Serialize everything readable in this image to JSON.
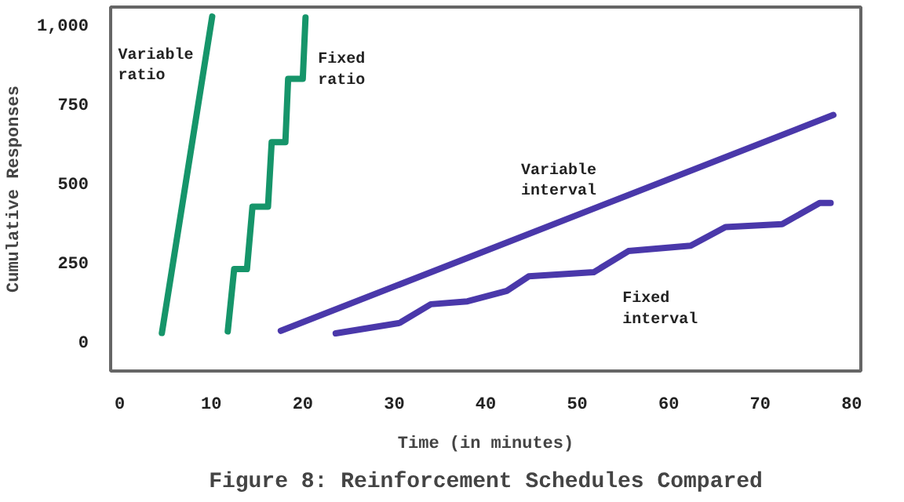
{
  "chart_data": {
    "type": "line",
    "title": "Figure 8: Reinforcement Schedules Compared",
    "xlabel": "Time (in minutes)",
    "ylabel": "Cumulative Responses",
    "xlim": [
      -1,
      81
    ],
    "ylim": [
      -95,
      1055
    ],
    "xticks": [
      0,
      10,
      20,
      30,
      40,
      50,
      60,
      70,
      80
    ],
    "yticks": [
      0,
      250,
      500,
      750,
      {
        "value": 1000,
        "label": "1,000"
      }
    ],
    "grid": false,
    "legend": false,
    "series": [
      {
        "name": "Variable ratio",
        "color": "#16956a",
        "x": [
          4.6,
          10.1
        ],
        "values": [
          25,
          1025
        ]
      },
      {
        "name": "Fixed ratio",
        "color": "#16956a",
        "x": [
          11.8,
          12.5,
          13.9,
          14.5,
          16.2,
          16.6,
          18.1,
          18.4,
          20.0,
          20.3
        ],
        "values": [
          30,
          227,
          227,
          424,
          424,
          628,
          628,
          828,
          828,
          1022
        ]
      },
      {
        "name": "Variable interval",
        "color": "#4a38aa",
        "x": [
          17.6,
          78.0
        ],
        "values": [
          32,
          714
        ]
      },
      {
        "name": "Fixed interval",
        "color": "#4a38aa",
        "x": [
          23.6,
          30.6,
          34.0,
          38.0,
          42.3,
          44.7,
          51.8,
          55.6,
          62.4,
          66.2,
          72.4,
          76.5,
          77.7
        ],
        "values": [
          24,
          57,
          116,
          125,
          158,
          204,
          217,
          284,
          301,
          360,
          369,
          436,
          436
        ]
      }
    ]
  }
}
